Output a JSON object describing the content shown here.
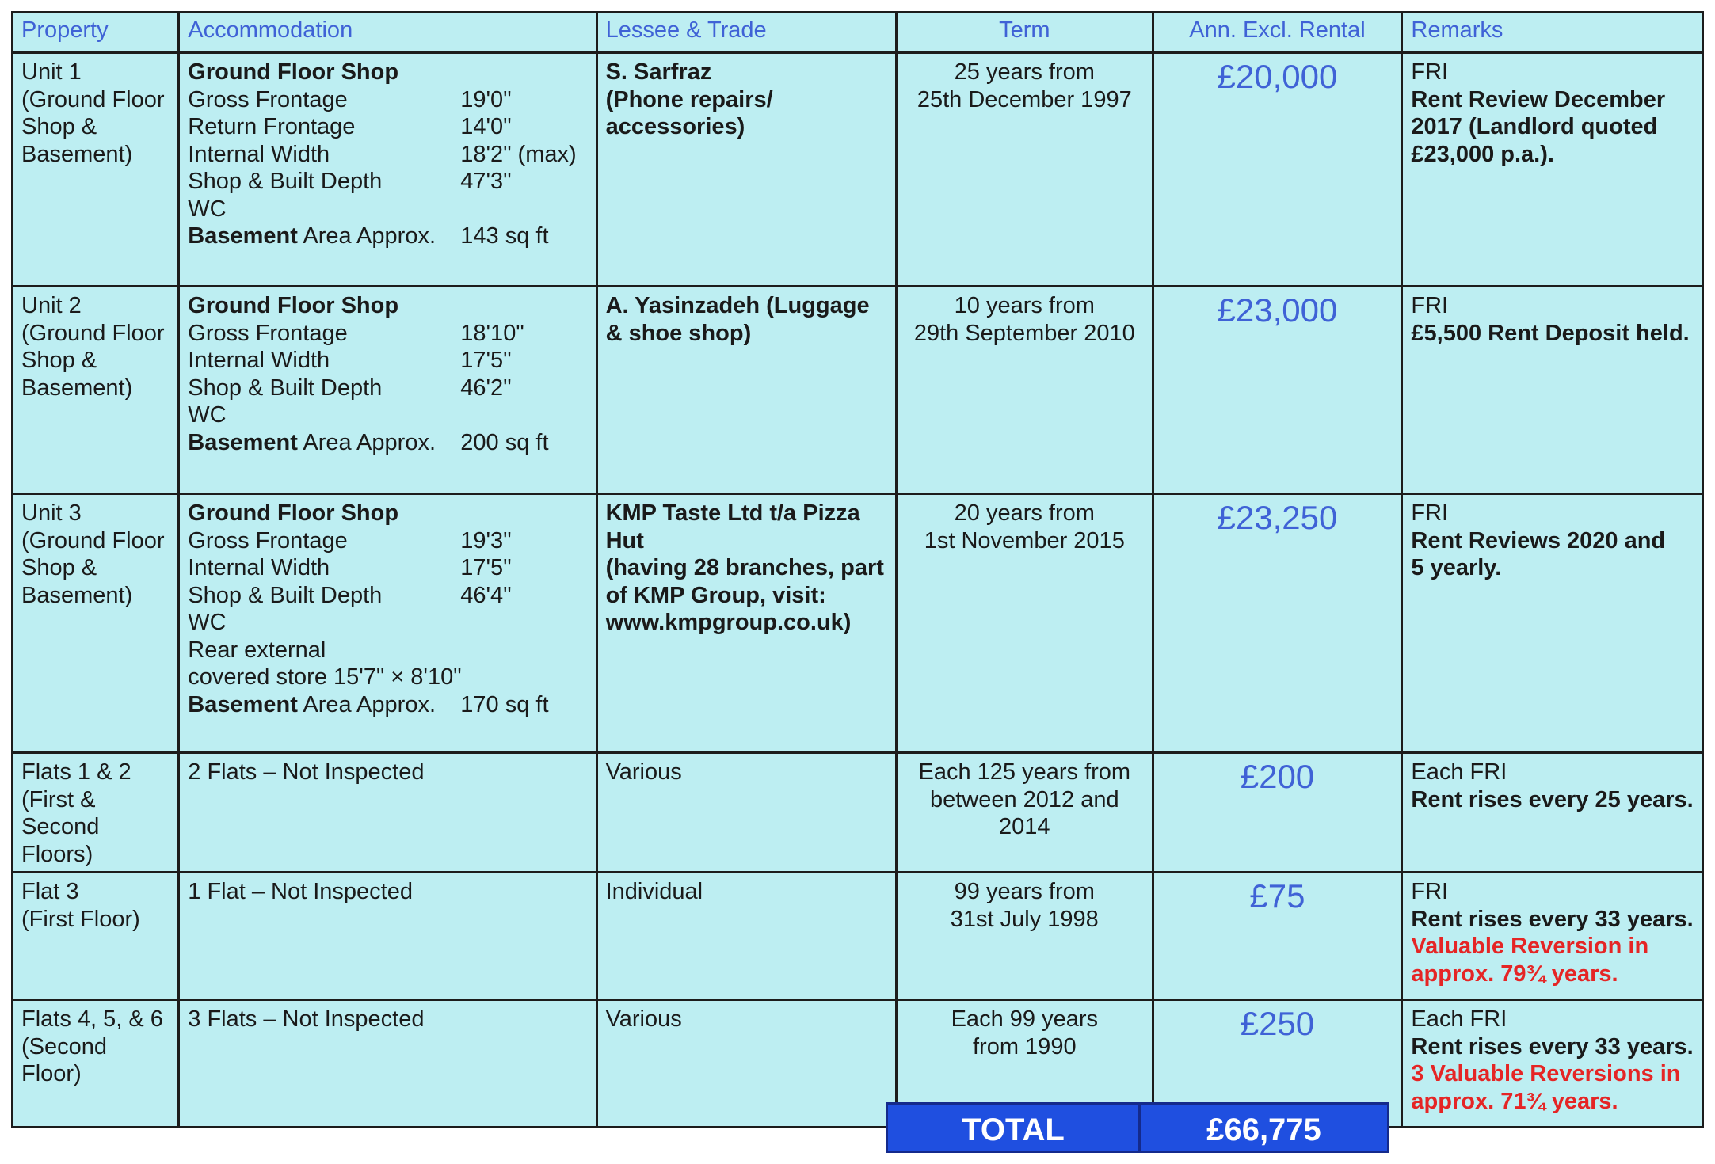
{
  "headers": {
    "property": "Property",
    "accommodation": "Accommodation",
    "lessee": "Lessee & Trade",
    "term": "Term",
    "rental": "Ann. Excl. Rental",
    "remarks": "Remarks"
  },
  "rows": [
    {
      "property": [
        "Unit 1",
        "(Ground Floor",
        "Shop &",
        "Basement)"
      ],
      "acc_title": "Ground Floor Shop",
      "acc": [
        {
          "label": "Gross Frontage",
          "value": "19'0\""
        },
        {
          "label": "Return Frontage",
          "value": "14'0\""
        },
        {
          "label": "Internal Width",
          "value": "18'2\" (max)"
        },
        {
          "label": "Shop & Built Depth",
          "value": "47'3\""
        },
        {
          "label": "WC",
          "value": ""
        }
      ],
      "basement_bold": "Basement",
      "basement_rest": " Area Approx.",
      "basement_value": "143 sq ft",
      "lessee": [
        "S. Sarfraz",
        "(Phone repairs/",
        "accessories)"
      ],
      "term": [
        "25 years from",
        "25th December 1997"
      ],
      "rent": "£20,000",
      "remarks_plain": [
        "FRI"
      ],
      "remarks_bold": [
        "Rent Review December",
        "2017 (Landlord quoted",
        "£23,000 p.a.)."
      ],
      "remarks_red": []
    },
    {
      "property": [
        "Unit 2",
        "(Ground Floor",
        "Shop &",
        "Basement)"
      ],
      "acc_title": "Ground Floor Shop",
      "acc": [
        {
          "label": "Gross Frontage",
          "value": "18'10\""
        },
        {
          "label": "Internal Width",
          "value": "17'5\""
        },
        {
          "label": "Shop & Built Depth",
          "value": "46'2\""
        },
        {
          "label": "WC",
          "value": ""
        }
      ],
      "basement_bold": "Basement",
      "basement_rest": " Area Approx.",
      "basement_value": "200 sq ft",
      "lessee": [
        "A. Yasinzadeh (Luggage",
        "& shoe shop)"
      ],
      "term": [
        "10 years from",
        "29th September 2010"
      ],
      "rent": "£23,000",
      "remarks_plain": [
        "FRI"
      ],
      "remarks_bold": [
        "£5,500 Rent Deposit held."
      ],
      "remarks_red": []
    },
    {
      "property": [
        "Unit 3",
        "(Ground Floor",
        "Shop &",
        "Basement)"
      ],
      "acc_title": "Ground Floor Shop",
      "acc": [
        {
          "label": "Gross Frontage",
          "value": "19'3\""
        },
        {
          "label": "Internal Width",
          "value": "17'5\""
        },
        {
          "label": "Shop & Built Depth",
          "value": "46'4\""
        },
        {
          "label": "WC",
          "value": ""
        },
        {
          "label": "Rear external",
          "value": ""
        },
        {
          "label": "covered store 15'7\" × 8'10\"",
          "value": ""
        }
      ],
      "basement_bold": "Basement",
      "basement_rest": " Area Approx.",
      "basement_value": "170 sq ft",
      "lessee": [
        "KMP Taste Ltd t/a Pizza",
        "Hut",
        "(having 28 branches, part",
        "of KMP Group, visit:",
        "www.kmpgroup.co.uk)"
      ],
      "term": [
        "20 years from",
        "1st November 2015"
      ],
      "rent": "£23,250",
      "remarks_plain": [
        "FRI"
      ],
      "remarks_bold": [
        "Rent Reviews 2020 and",
        "5 yearly."
      ],
      "remarks_red": []
    },
    {
      "property": [
        "Flats 1 & 2",
        "(First & Second",
        "Floors)"
      ],
      "acc_text": "2 Flats – Not Inspected",
      "lessee_plain": "Various",
      "term": [
        "Each 125 years from",
        "between 2012 and",
        "2014"
      ],
      "rent": "£200",
      "remarks_plain": [
        "Each FRI"
      ],
      "remarks_bold": [
        "Rent rises every 25 years."
      ],
      "remarks_red": []
    },
    {
      "property": [
        "Flat 3",
        "(First Floor)"
      ],
      "acc_text": "1 Flat – Not Inspected",
      "lessee_plain": "Individual",
      "term": [
        "99 years from",
        "31st July 1998"
      ],
      "rent": "£75",
      "remarks_plain": [
        "FRI"
      ],
      "remarks_bold": [
        "Rent rises every 33 years."
      ],
      "remarks_red": [
        "Valuable Reversion in",
        "approx. 79¾ years."
      ]
    },
    {
      "property": [
        "Flats 4, 5, & 6",
        "(Second Floor)"
      ],
      "acc_text": "3 Flats – Not Inspected",
      "lessee_plain": "Various",
      "term": [
        "Each 99 years",
        "from 1990"
      ],
      "rent": "£250",
      "remarks_plain": [
        "Each FRI"
      ],
      "remarks_bold": [
        "Rent rises every 33 years."
      ],
      "remarks_red": [
        "3 Valuable Reversions in",
        "approx. 71¾ years."
      ]
    }
  ],
  "total": {
    "label": "TOTAL",
    "value": "£66,775"
  },
  "colors": {
    "cell_background": "#bdeef2",
    "header_text": "#3f62d6",
    "rent_text": "#3f62d6",
    "reversion_text": "#e52525",
    "total_background": "#1f4fe0"
  }
}
